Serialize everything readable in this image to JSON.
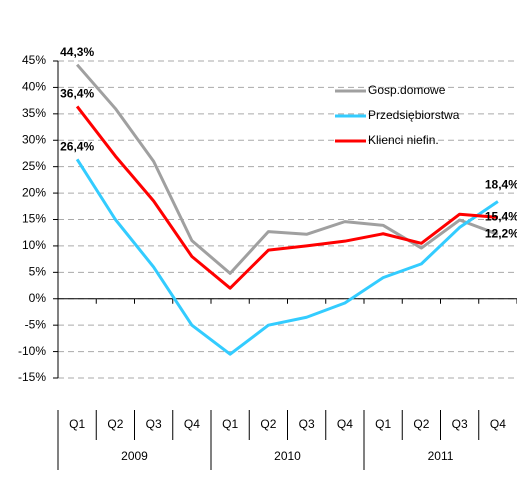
{
  "chart_data": {
    "type": "line",
    "categories": [
      "Q1",
      "Q2",
      "Q3",
      "Q4",
      "Q1",
      "Q2",
      "Q3",
      "Q4",
      "Q1",
      "Q2",
      "Q3",
      "Q4"
    ],
    "years": [
      "2009",
      "2010",
      "2011"
    ],
    "ylim": [
      -15,
      45
    ],
    "yticks": [
      {
        "value": -15,
        "label": "-15%"
      },
      {
        "value": -10,
        "label": "-10%"
      },
      {
        "value": -5,
        "label": "-5%"
      },
      {
        "value": 0,
        "label": "0%"
      },
      {
        "value": 5,
        "label": "5%"
      },
      {
        "value": 10,
        "label": "10%"
      },
      {
        "value": 15,
        "label": "15%"
      },
      {
        "value": 20,
        "label": "20%"
      },
      {
        "value": 25,
        "label": "25%"
      },
      {
        "value": 30,
        "label": "30%"
      },
      {
        "value": 35,
        "label": "35%"
      },
      {
        "value": 40,
        "label": "40%"
      },
      {
        "value": 45,
        "label": "45%"
      }
    ],
    "grid": true,
    "legend": "top-right",
    "series": [
      {
        "name": "Gosp.domowe",
        "color": "#a0a0a0",
        "values": [
          44.3,
          36,
          26,
          11,
          4.8,
          12.7,
          12.2,
          14.6,
          13.9,
          9.6,
          14.9,
          12.2
        ],
        "value_labels": [
          "44,3%",
          null,
          null,
          null,
          null,
          null,
          null,
          null,
          null,
          null,
          null,
          "12,2%"
        ]
      },
      {
        "name": "Przedsiębiorstwa",
        "color": "#33ccff",
        "values": [
          26.4,
          15,
          6,
          -5,
          -10.5,
          -5,
          -3.5,
          -0.8,
          4,
          6.6,
          13.5,
          18.4
        ],
        "value_labels": [
          "26,4%",
          null,
          null,
          null,
          null,
          null,
          null,
          null,
          null,
          null,
          null,
          "18,4%"
        ]
      },
      {
        "name": "Klienci niefin.",
        "color": "#ff0000",
        "values": [
          36.4,
          27,
          18.5,
          8,
          2,
          9.2,
          10,
          10.9,
          12.3,
          10.5,
          16,
          15.4
        ],
        "value_labels": [
          "36,4%",
          null,
          null,
          null,
          null,
          null,
          null,
          null,
          null,
          null,
          null,
          "15,4%"
        ]
      }
    ]
  }
}
